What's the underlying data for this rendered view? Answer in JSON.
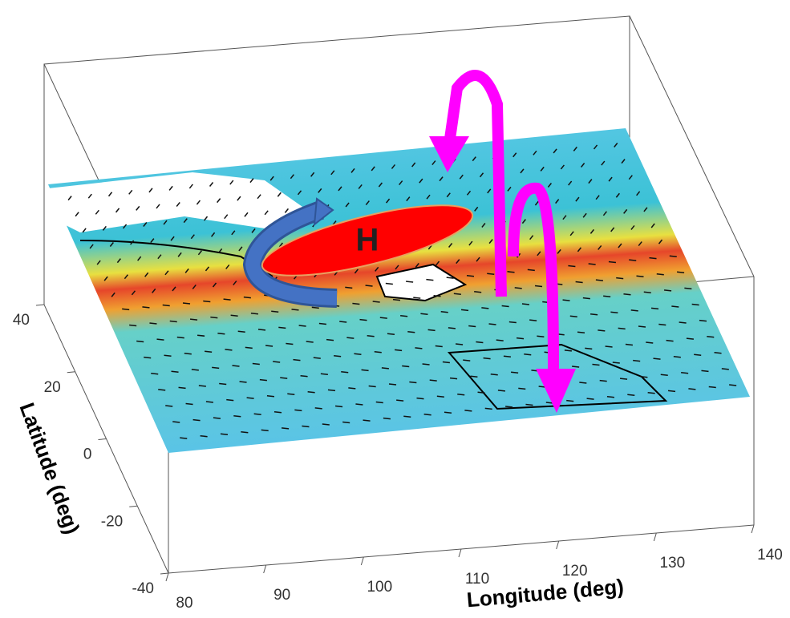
{
  "chart_data": {
    "type": "surface3d",
    "xlabel": "Longitude (deg)",
    "ylabel": "Latitude (deg)",
    "xlim": [
      80,
      140
    ],
    "xticks": [
      80,
      90,
      100,
      110,
      120,
      130,
      140
    ],
    "ylim": [
      -40,
      40
    ],
    "yticks": [
      -40,
      -20,
      0,
      20,
      40
    ],
    "annotation": "H"
  }
}
